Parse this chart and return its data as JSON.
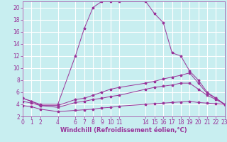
{
  "xlabel": "Windchill (Refroidissement éolien,°C)",
  "bg_color": "#c8eef0",
  "grid_color": "#ffffff",
  "line_color": "#993399",
  "line1_x": [
    0,
    1,
    2,
    4,
    6,
    7,
    8,
    9,
    10,
    11,
    14,
    15,
    16,
    17,
    18,
    19,
    20,
    21,
    22,
    23
  ],
  "line1_y": [
    5.0,
    4.5,
    4.0,
    4.0,
    12.0,
    16.5,
    20.0,
    21.0,
    21.0,
    21.0,
    21.0,
    19.0,
    17.5,
    12.5,
    12.0,
    9.5,
    8.0,
    6.0,
    5.0,
    4.0
  ],
  "line2_x": [
    0,
    1,
    2,
    4,
    6,
    7,
    8,
    9,
    10,
    11,
    14,
    15,
    16,
    17,
    18,
    19,
    20,
    21,
    22,
    23
  ],
  "line2_y": [
    5.0,
    4.5,
    3.8,
    3.8,
    4.8,
    5.0,
    5.5,
    6.0,
    6.5,
    6.8,
    7.5,
    7.8,
    8.2,
    8.5,
    8.8,
    9.2,
    7.5,
    5.8,
    5.0,
    4.0
  ],
  "line3_x": [
    0,
    1,
    2,
    4,
    6,
    7,
    8,
    9,
    10,
    11,
    14,
    15,
    16,
    17,
    18,
    19,
    20,
    21,
    22,
    23
  ],
  "line3_y": [
    4.5,
    4.2,
    3.8,
    3.5,
    4.3,
    4.5,
    4.8,
    5.0,
    5.3,
    5.5,
    6.5,
    6.8,
    7.0,
    7.2,
    7.5,
    7.5,
    6.5,
    5.5,
    4.8,
    4.0
  ],
  "line4_x": [
    0,
    1,
    2,
    4,
    6,
    7,
    8,
    9,
    10,
    11,
    14,
    15,
    16,
    17,
    18,
    19,
    20,
    21,
    22,
    23
  ],
  "line4_y": [
    3.8,
    3.6,
    3.2,
    2.8,
    3.0,
    3.1,
    3.2,
    3.4,
    3.5,
    3.7,
    4.0,
    4.1,
    4.2,
    4.3,
    4.4,
    4.5,
    4.3,
    4.2,
    4.1,
    4.0
  ],
  "xlim": [
    0,
    23
  ],
  "ylim": [
    2,
    21
  ],
  "xticks": [
    0,
    1,
    2,
    4,
    6,
    7,
    8,
    9,
    10,
    11,
    14,
    15,
    16,
    17,
    18,
    19,
    20,
    21,
    22,
    23
  ],
  "yticks": [
    2,
    4,
    6,
    8,
    10,
    12,
    14,
    16,
    18,
    20
  ],
  "tick_fontsize": 5.5,
  "xlabel_fontsize": 6.0,
  "markersize": 2.5,
  "linewidth": 0.7
}
